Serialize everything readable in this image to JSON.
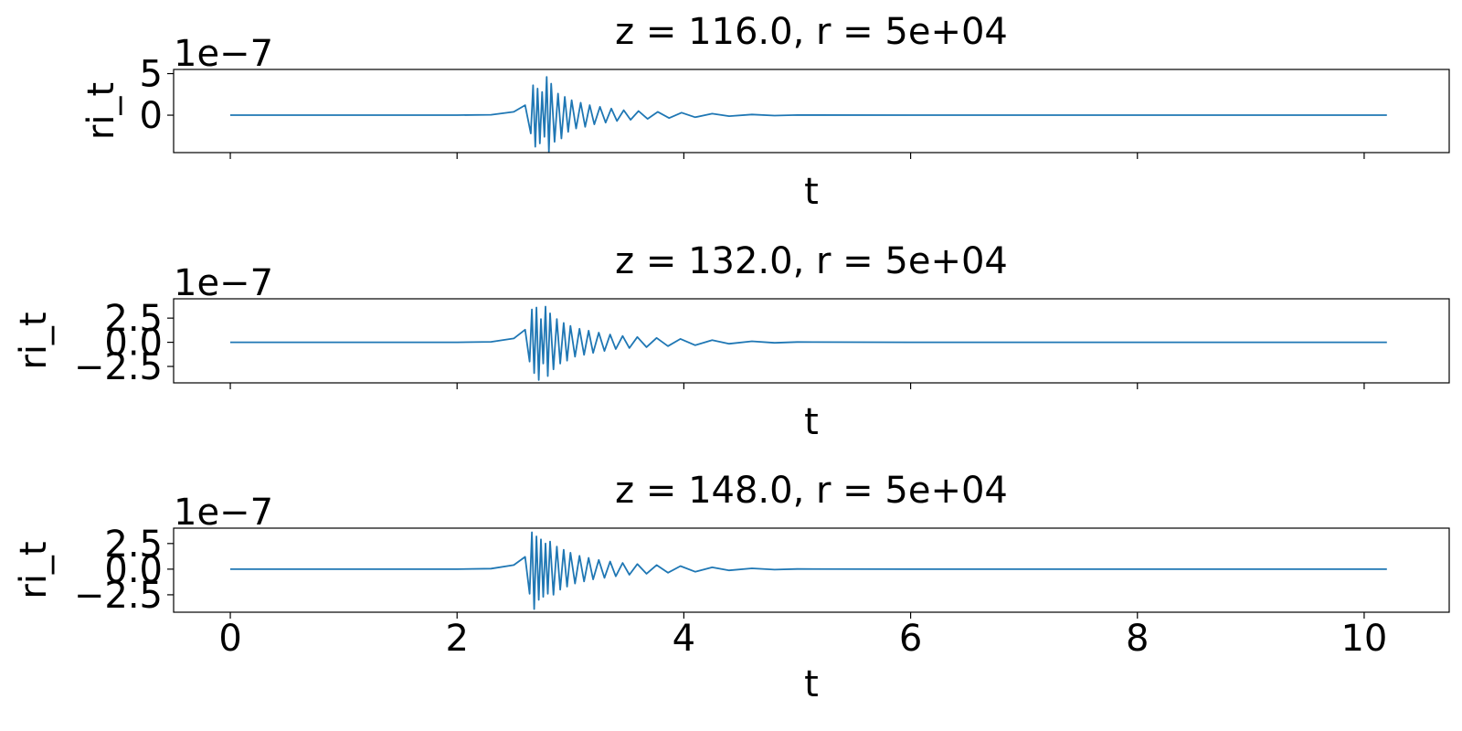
{
  "chart_data": [
    {
      "type": "line",
      "title": "z = 116.0, r = 5e+04",
      "xlabel": "t",
      "ylabel": "ri_t",
      "y_offset_label": "1e−7",
      "xlim": [
        -0.5,
        10.75
      ],
      "ylim": [
        -4.5,
        5.5
      ],
      "xticks": [
        0,
        2,
        4,
        6,
        8,
        10
      ],
      "xtick_labels": [],
      "yticks": [
        0,
        5
      ],
      "ytick_labels": [
        "0",
        "5"
      ],
      "color": "#1f77b4",
      "series": [
        {
          "x": [
            0,
            0.5,
            1.0,
            1.5,
            2.0,
            2.3,
            2.5,
            2.6,
            2.65,
            2.67,
            2.69,
            2.71,
            2.73,
            2.75,
            2.77,
            2.79,
            2.81,
            2.83,
            2.86,
            2.89,
            2.92,
            2.95,
            2.98,
            3.01,
            3.05,
            3.09,
            3.13,
            3.17,
            3.21,
            3.26,
            3.31,
            3.36,
            3.41,
            3.47,
            3.53,
            3.6,
            3.68,
            3.77,
            3.87,
            3.98,
            4.1,
            4.25,
            4.4,
            4.6,
            4.8,
            5.0,
            6.0,
            8.0,
            10.2
          ],
          "y": [
            0,
            0,
            0,
            0,
            0,
            0.05,
            0.4,
            1.2,
            -2.2,
            3.6,
            -3.8,
            3.2,
            -3.4,
            2.8,
            -2.6,
            4.6,
            -4.4,
            3.8,
            -3.2,
            2.6,
            -2.8,
            2.2,
            -2.0,
            1.8,
            -1.6,
            1.5,
            -1.4,
            1.2,
            -1.1,
            1.0,
            -0.9,
            0.8,
            -0.7,
            0.6,
            -0.55,
            0.5,
            -0.45,
            0.4,
            -0.35,
            0.3,
            -0.25,
            0.18,
            -0.12,
            0.08,
            -0.05,
            0.02,
            0,
            0,
            0
          ]
        }
      ]
    },
    {
      "type": "line",
      "title": "z = 132.0, r = 5e+04",
      "xlabel": "t",
      "ylabel": "ri_t",
      "y_offset_label": "1e−7",
      "xlim": [
        -0.5,
        10.75
      ],
      "ylim": [
        -4.2,
        4.5
      ],
      "xticks": [
        0,
        2,
        4,
        6,
        8,
        10
      ],
      "xtick_labels": [],
      "yticks": [
        -2.5,
        0.0,
        2.5
      ],
      "ytick_labels": [
        "−2.5",
        "0.0",
        "2.5"
      ],
      "color": "#1f77b4",
      "series": [
        {
          "x": [
            0,
            0.5,
            1.0,
            1.5,
            2.0,
            2.3,
            2.5,
            2.6,
            2.64,
            2.66,
            2.68,
            2.7,
            2.72,
            2.74,
            2.76,
            2.78,
            2.8,
            2.82,
            2.85,
            2.88,
            2.91,
            2.94,
            2.97,
            3.0,
            3.04,
            3.08,
            3.12,
            3.16,
            3.2,
            3.25,
            3.3,
            3.35,
            3.4,
            3.46,
            3.52,
            3.59,
            3.67,
            3.76,
            3.86,
            3.97,
            4.1,
            4.25,
            4.4,
            4.6,
            4.8,
            5.0,
            6.0,
            8.0,
            10.2
          ],
          "y": [
            0,
            0,
            0,
            0,
            0,
            0.05,
            0.4,
            1.3,
            -2.0,
            3.4,
            -3.2,
            3.6,
            -3.9,
            2.4,
            -2.2,
            3.7,
            -3.5,
            3.0,
            -2.8,
            2.4,
            -2.2,
            2.0,
            -1.9,
            1.7,
            -1.5,
            1.4,
            -1.3,
            1.2,
            -1.1,
            1.0,
            -0.9,
            0.8,
            -0.7,
            0.65,
            -0.6,
            0.55,
            -0.5,
            0.45,
            -0.4,
            0.35,
            -0.3,
            0.22,
            -0.15,
            0.1,
            -0.06,
            0.03,
            0,
            0,
            0
          ]
        }
      ]
    },
    {
      "type": "line",
      "title": "z = 148.0, r = 5e+04",
      "xlabel": "t",
      "ylabel": "ri_t",
      "y_offset_label": "1e−7",
      "xlim": [
        -0.5,
        10.75
      ],
      "ylim": [
        -4.2,
        4.0
      ],
      "xticks": [
        0,
        2,
        4,
        6,
        8,
        10
      ],
      "xtick_labels": [
        "0",
        "2",
        "4",
        "6",
        "8",
        "10"
      ],
      "yticks": [
        -2.5,
        0.0,
        2.5
      ],
      "ytick_labels": [
        "−2.5",
        "0.0",
        "2.5"
      ],
      "color": "#1f77b4",
      "series": [
        {
          "x": [
            0,
            0.5,
            1.0,
            1.5,
            2.0,
            2.3,
            2.5,
            2.6,
            2.64,
            2.66,
            2.68,
            2.7,
            2.72,
            2.74,
            2.76,
            2.78,
            2.8,
            2.82,
            2.85,
            2.88,
            2.91,
            2.94,
            2.97,
            3.0,
            3.04,
            3.08,
            3.12,
            3.16,
            3.2,
            3.25,
            3.3,
            3.35,
            3.4,
            3.46,
            3.52,
            3.59,
            3.67,
            3.76,
            3.86,
            3.97,
            4.1,
            4.25,
            4.4,
            4.6,
            4.8,
            5.0,
            6.0,
            8.0,
            10.2
          ],
          "y": [
            0,
            0,
            0,
            0,
            0,
            0.05,
            0.4,
            1.2,
            -2.4,
            3.6,
            -3.9,
            3.2,
            -3.0,
            2.9,
            -2.7,
            2.5,
            -2.4,
            2.7,
            -2.5,
            2.2,
            -2.0,
            1.9,
            -1.7,
            1.6,
            -1.4,
            1.3,
            -1.2,
            1.1,
            -1.0,
            0.9,
            -0.85,
            0.75,
            -0.7,
            0.6,
            -0.55,
            0.5,
            -0.45,
            0.4,
            -0.35,
            0.3,
            -0.25,
            0.18,
            -0.12,
            0.08,
            -0.05,
            0.02,
            0,
            0,
            0
          ]
        }
      ]
    }
  ]
}
